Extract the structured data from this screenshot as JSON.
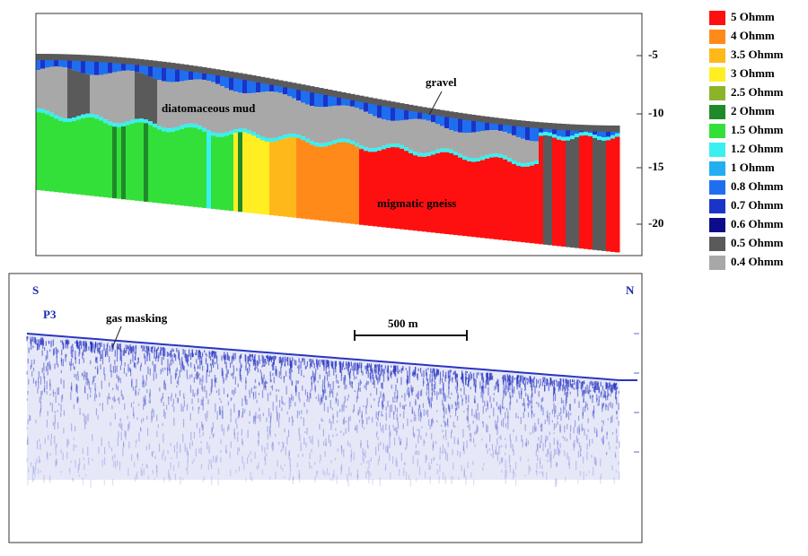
{
  "top_panel": {
    "depth_ticks": [
      "-5",
      "-10",
      "-15",
      "-20"
    ],
    "labels": {
      "gravel": "gravel",
      "mud": "diatomaceous mud",
      "rock": "migmatic gneiss"
    }
  },
  "legend": [
    {
      "label": "5 Ohmm",
      "color": "#ff1010"
    },
    {
      "label": "4 Ohmm",
      "color": "#ff8a1a"
    },
    {
      "label": "3.5 Ohmm",
      "color": "#ffb81a"
    },
    {
      "label": "3 Ohmm",
      "color": "#ffee22"
    },
    {
      "label": "2.5 Ohmm",
      "color": "#8cb42a"
    },
    {
      "label": "2 Ohmm",
      "color": "#1f8a2a"
    },
    {
      "label": "1.5 Ohmm",
      "color": "#33e03a"
    },
    {
      "label": "1.2 Ohmm",
      "color": "#3af0f0"
    },
    {
      "label": "1 Ohmm",
      "color": "#22aef0"
    },
    {
      "label": "0.8 Ohmm",
      "color": "#1f6ef0"
    },
    {
      "label": "0.7 Ohmm",
      "color": "#1a34c8"
    },
    {
      "label": "0.6 Ohmm",
      "color": "#0c0c8a"
    },
    {
      "label": "0.5 Ohmm",
      "color": "#5a5a5a"
    },
    {
      "label": "0.4 Ohmm",
      "color": "#a8a8a8"
    }
  ],
  "bottom_panel": {
    "left_end": "S",
    "right_end": "N",
    "profile": "P3",
    "annotation": "gas masking",
    "scale_bar": "500 m"
  }
}
